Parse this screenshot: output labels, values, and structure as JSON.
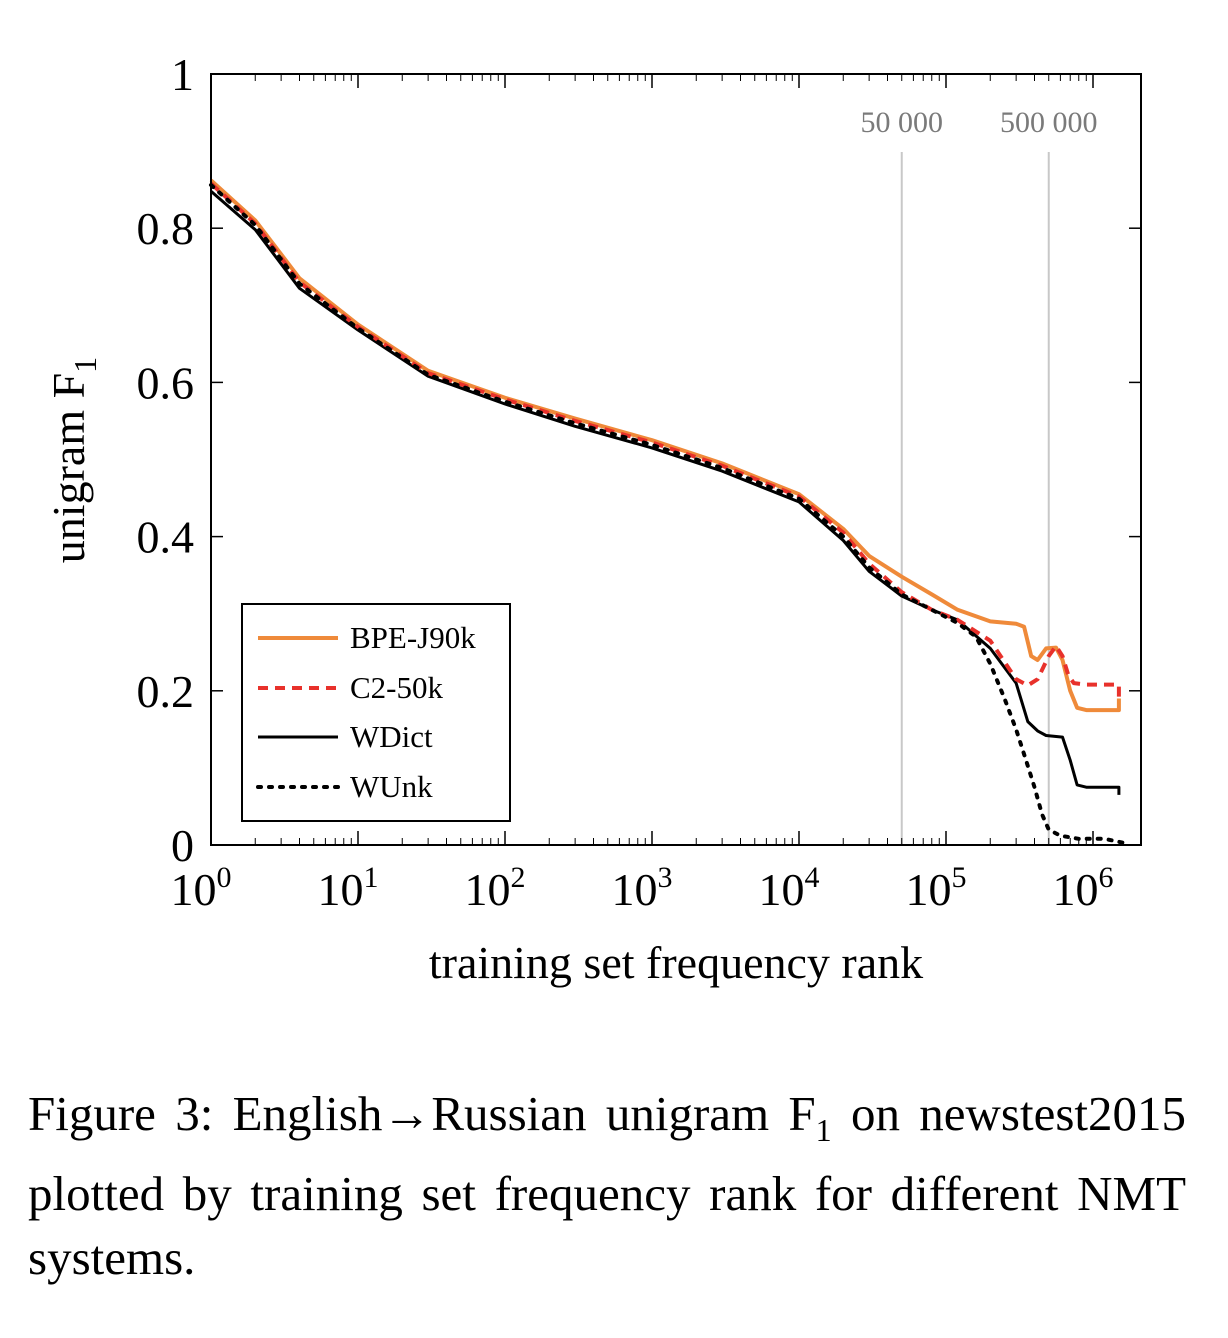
{
  "chart_data": {
    "type": "line",
    "xscale": "log",
    "xlim": [
      1,
      1600000
    ],
    "ylim": [
      0,
      1
    ],
    "xlabel": "training set frequency rank",
    "ylabel": "unigram F",
    "ylabel_sub": "1",
    "x_ticks": [
      {
        "value": 1,
        "base": "10",
        "exp": "0"
      },
      {
        "value": 10,
        "base": "10",
        "exp": "1"
      },
      {
        "value": 100,
        "base": "10",
        "exp": "2"
      },
      {
        "value": 1000,
        "base": "10",
        "exp": "3"
      },
      {
        "value": 10000,
        "base": "10",
        "exp": "4"
      },
      {
        "value": 100000,
        "base": "10",
        "exp": "5"
      },
      {
        "value": 1000000,
        "base": "10",
        "exp": "6"
      }
    ],
    "y_ticks": [
      {
        "value": 0,
        "label": "0"
      },
      {
        "value": 0.2,
        "label": "0.2"
      },
      {
        "value": 0.4,
        "label": "0.4"
      },
      {
        "value": 0.6,
        "label": "0.6"
      },
      {
        "value": 0.8,
        "label": "0.8"
      },
      {
        "value": 1,
        "label": "1"
      }
    ],
    "reference_lines": [
      {
        "x": 50000,
        "label": "50 000"
      },
      {
        "x": 500000,
        "label": "500 000"
      }
    ],
    "legend_position": "bottom-left",
    "series": [
      {
        "name": "BPE-J90k",
        "color": "#ef8a3a",
        "style": "solid",
        "points": [
          [
            1,
            0.862
          ],
          [
            2,
            0.81
          ],
          [
            4,
            0.735
          ],
          [
            10,
            0.675
          ],
          [
            30,
            0.615
          ],
          [
            100,
            0.58
          ],
          [
            300,
            0.553
          ],
          [
            1000,
            0.525
          ],
          [
            3000,
            0.495
          ],
          [
            10000,
            0.455
          ],
          [
            20000,
            0.41
          ],
          [
            30000,
            0.375
          ],
          [
            50000,
            0.348
          ],
          [
            80000,
            0.325
          ],
          [
            120000,
            0.305
          ],
          [
            200000,
            0.29
          ],
          [
            300000,
            0.287
          ],
          [
            340000,
            0.283
          ],
          [
            380000,
            0.245
          ],
          [
            420000,
            0.24
          ],
          [
            480000,
            0.255
          ],
          [
            560000,
            0.256
          ],
          [
            620000,
            0.24
          ],
          [
            700000,
            0.2
          ],
          [
            780000,
            0.178
          ],
          [
            900000,
            0.175
          ],
          [
            1500000,
            0.175
          ],
          [
            1500000,
            0.19
          ]
        ]
      },
      {
        "name": "C2-50k",
        "color": "#e8312b",
        "style": "dashed",
        "points": [
          [
            1,
            0.858
          ],
          [
            2,
            0.806
          ],
          [
            4,
            0.73
          ],
          [
            10,
            0.672
          ],
          [
            30,
            0.612
          ],
          [
            100,
            0.578
          ],
          [
            300,
            0.55
          ],
          [
            1000,
            0.522
          ],
          [
            3000,
            0.492
          ],
          [
            10000,
            0.452
          ],
          [
            20000,
            0.405
          ],
          [
            30000,
            0.365
          ],
          [
            50000,
            0.328
          ],
          [
            80000,
            0.305
          ],
          [
            120000,
            0.292
          ],
          [
            200000,
            0.265
          ],
          [
            300000,
            0.215
          ],
          [
            360000,
            0.207
          ],
          [
            420000,
            0.215
          ],
          [
            500000,
            0.245
          ],
          [
            560000,
            0.258
          ],
          [
            620000,
            0.245
          ],
          [
            680000,
            0.22
          ],
          [
            740000,
            0.21
          ],
          [
            900000,
            0.208
          ],
          [
            1500000,
            0.208
          ],
          [
            1500000,
            0.185
          ]
        ]
      },
      {
        "name": "WDict",
        "color": "#000000",
        "style": "solid",
        "points": [
          [
            1,
            0.848
          ],
          [
            2,
            0.798
          ],
          [
            4,
            0.722
          ],
          [
            10,
            0.668
          ],
          [
            30,
            0.608
          ],
          [
            100,
            0.572
          ],
          [
            300,
            0.543
          ],
          [
            1000,
            0.515
          ],
          [
            3000,
            0.485
          ],
          [
            10000,
            0.445
          ],
          [
            20000,
            0.395
          ],
          [
            30000,
            0.355
          ],
          [
            50000,
            0.323
          ],
          [
            80000,
            0.305
          ],
          [
            120000,
            0.292
          ],
          [
            200000,
            0.255
          ],
          [
            300000,
            0.21
          ],
          [
            360000,
            0.16
          ],
          [
            420000,
            0.148
          ],
          [
            480000,
            0.142
          ],
          [
            620000,
            0.14
          ],
          [
            700000,
            0.11
          ],
          [
            780000,
            0.078
          ],
          [
            900000,
            0.075
          ],
          [
            1500000,
            0.075
          ],
          [
            1500000,
            0.065
          ]
        ]
      },
      {
        "name": "WUnk",
        "color": "#000000",
        "style": "dotted",
        "points": [
          [
            1,
            0.856
          ],
          [
            2,
            0.804
          ],
          [
            4,
            0.728
          ],
          [
            10,
            0.67
          ],
          [
            30,
            0.61
          ],
          [
            100,
            0.575
          ],
          [
            300,
            0.547
          ],
          [
            1000,
            0.519
          ],
          [
            3000,
            0.489
          ],
          [
            10000,
            0.449
          ],
          [
            20000,
            0.4
          ],
          [
            30000,
            0.36
          ],
          [
            50000,
            0.325
          ],
          [
            80000,
            0.305
          ],
          [
            120000,
            0.288
          ],
          [
            160000,
            0.27
          ],
          [
            200000,
            0.235
          ],
          [
            250000,
            0.19
          ],
          [
            300000,
            0.15
          ],
          [
            350000,
            0.11
          ],
          [
            400000,
            0.075
          ],
          [
            450000,
            0.04
          ],
          [
            500000,
            0.02
          ],
          [
            600000,
            0.012
          ],
          [
            800000,
            0.008
          ],
          [
            1200000,
            0.008
          ],
          [
            1600000,
            0.003
          ]
        ]
      }
    ]
  },
  "caption": {
    "prefix": "Figure 3: English→Russian unigram F",
    "sub": "1",
    "suffix": " on newstest2015 plotted by training set frequency rank for different NMT systems."
  }
}
